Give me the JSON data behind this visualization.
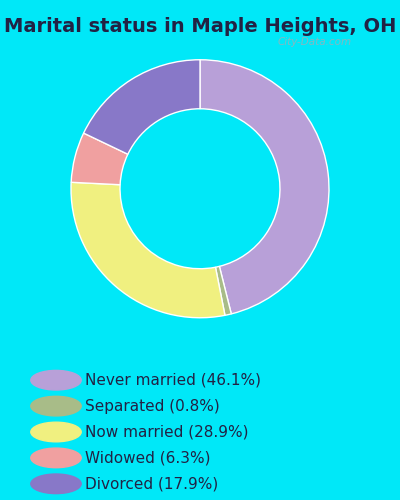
{
  "title": "Marital status in Maple Heights, OH",
  "slices": [
    46.1,
    0.8,
    28.9,
    6.3,
    17.9
  ],
  "labels": [
    "Never married (46.1%)",
    "Separated (0.8%)",
    "Now married (28.9%)",
    "Widowed (6.3%)",
    "Divorced (17.9%)"
  ],
  "colors": [
    "#b8a0d8",
    "#a8bc88",
    "#f0f080",
    "#f0a0a0",
    "#8878c8"
  ],
  "bg_cyan": "#00e8f8",
  "bg_chart": "#d8ece0",
  "title_fontsize": 14,
  "title_color": "#222244",
  "legend_fontsize": 11,
  "legend_text_color": "#222244",
  "watermark": "City-Data.com",
  "donut_width": 0.38
}
